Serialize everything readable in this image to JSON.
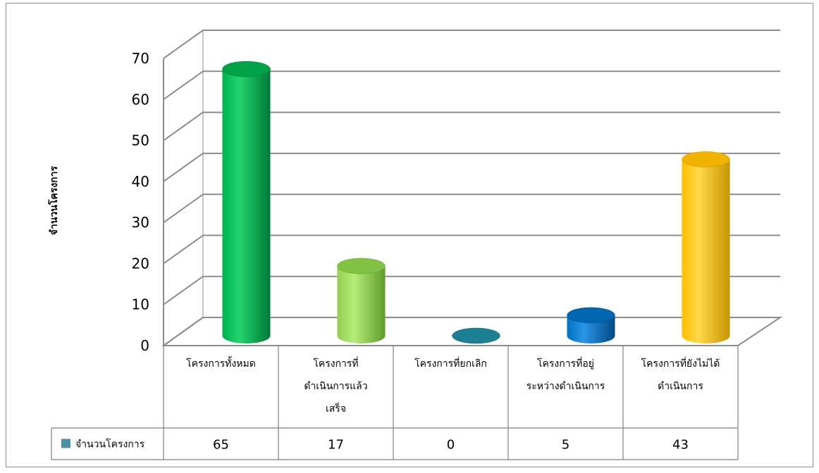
{
  "chart_data": {
    "type": "bar",
    "title": "",
    "ylabel": "จำนวนโครงการ",
    "xlabel": "",
    "ylim": [
      0,
      70
    ],
    "yticks": [
      0,
      10,
      20,
      30,
      40,
      50,
      60,
      70
    ],
    "categories": [
      [
        "โครงการทั้งหมด"
      ],
      [
        "โครงการที่",
        "ดำเนินการแล้ว",
        "เสร็จ"
      ],
      [
        "โครงการที่ยกเลิก"
      ],
      [
        "โครงการที่อยู่",
        "ระหว่างดำเนินการ"
      ],
      [
        "โครงการที่ยังไม่ได้",
        "ดำเนินการ"
      ]
    ],
    "series": [
      {
        "name": "จำนวนโครงการ",
        "values": [
          65,
          17,
          0,
          5,
          43
        ],
        "legend_color": "#4f8fa6"
      }
    ],
    "bar_colors": [
      {
        "main": "#00b050",
        "light": "#22d46e",
        "dark": "#007a37",
        "top": "#00a247"
      },
      {
        "main": "#92d050",
        "light": "#b6ec78",
        "dark": "#5f9a2a",
        "top": "#82c243"
      },
      {
        "main": "#1f8aa0",
        "light": "#3fb0c6",
        "dark": "#126070",
        "top": "#1c7f93"
      },
      {
        "main": "#0070c0",
        "light": "#2a95e6",
        "dark": "#004a85",
        "top": "#0066b0"
      },
      {
        "main": "#ffc000",
        "light": "#ffd84a",
        "dark": "#c99400",
        "top": "#f0b400"
      }
    ],
    "grid": true,
    "legend": "data-table"
  }
}
